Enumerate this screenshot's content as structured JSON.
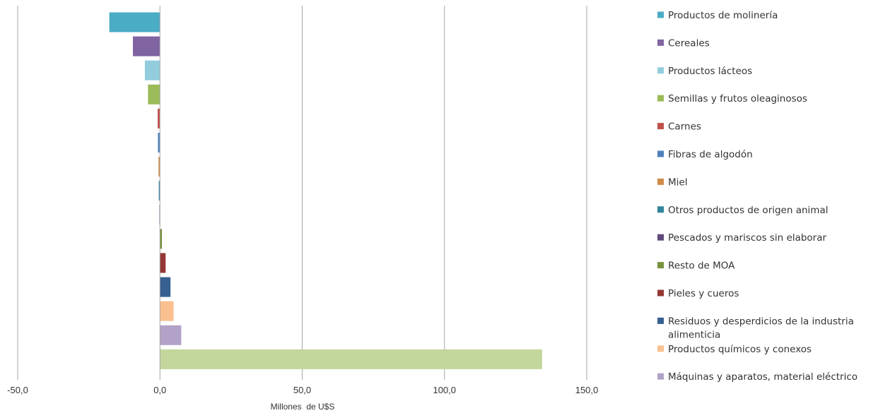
{
  "chart_data": {
    "type": "bar",
    "orientation": "horizontal",
    "xlabel": "Millones  de U$S",
    "xlim": [
      -50,
      150
    ],
    "xticks": [
      -50,
      0,
      50,
      100,
      150
    ],
    "xtick_labels": [
      "-50,0",
      "0,0",
      "50,0",
      "100,0",
      "150,0"
    ],
    "grid": true,
    "legend_position": "right",
    "categories": [
      {
        "name": "Productos de molinería",
        "value": -17.8,
        "color": "#4BACC6"
      },
      {
        "name": "Cereales",
        "value": -9.5,
        "color": "#8064A2"
      },
      {
        "name": "Productos lácteos",
        "value": -5.3,
        "color": "#93CDDD"
      },
      {
        "name": "Semillas y frutos oleaginosos",
        "value": -4.2,
        "color": "#9BBB59"
      },
      {
        "name": "Carnes",
        "value": -0.8,
        "color": "#C0504D"
      },
      {
        "name": "Fibras de algodón",
        "value": -0.7,
        "color": "#4F81BD"
      },
      {
        "name": "Miel",
        "value": -0.5,
        "color": "#D08B4A"
      },
      {
        "name": "Otros productos de origen animal",
        "value": -0.4,
        "color": "#31859C"
      },
      {
        "name": "Pescados y mariscos sin elaborar",
        "value": -0.2,
        "color": "#604A7B"
      },
      {
        "name": "Resto de MOA",
        "value": 0.7,
        "color": "#77933C"
      },
      {
        "name": "Pieles y cueros",
        "value": 2.0,
        "color": "#953735"
      },
      {
        "name": "Residuos y desperdicios de la industria alimenticia",
        "value": 3.7,
        "color": "#376092"
      },
      {
        "name": "Productos químicos y conexos",
        "value": 4.8,
        "color": "#FAC090"
      },
      {
        "name": "Máquinas y aparatos, material eléctrico",
        "value": 7.5,
        "color": "#B3A2C7"
      },
      {
        "name": "",
        "value": 134.3,
        "color": "#C3D69B"
      }
    ],
    "legend": [
      {
        "label": "Productos de molinería",
        "color": "#4BACC6"
      },
      {
        "label": "Cereales",
        "color": "#8064A2"
      },
      {
        "label": "Productos lácteos",
        "color": "#93CDDD"
      },
      {
        "label": "Semillas y frutos oleaginosos",
        "color": "#9BBB59"
      },
      {
        "label": "Carnes",
        "color": "#C0504D"
      },
      {
        "label": "Fibras de algodón",
        "color": "#4F81BD"
      },
      {
        "label": "Miel",
        "color": "#D08B4A"
      },
      {
        "label": "Otros productos de origen animal",
        "color": "#31859C"
      },
      {
        "label": "Pescados y mariscos sin elaborar",
        "color": "#604A7B"
      },
      {
        "label": "Resto de MOA",
        "color": "#77933C"
      },
      {
        "label": "Pieles y cueros",
        "color": "#953735"
      },
      {
        "label": "Residuos y desperdicios de la industria alimenticia",
        "label_lines": [
          "Residuos y desperdicios de la industria",
          "alimenticia"
        ],
        "color": "#376092"
      },
      {
        "label": "Productos químicos y conexos",
        "color": "#FAC090"
      },
      {
        "label": "Máquinas y aparatos, material eléctrico",
        "color": "#B3A2C7"
      }
    ]
  }
}
